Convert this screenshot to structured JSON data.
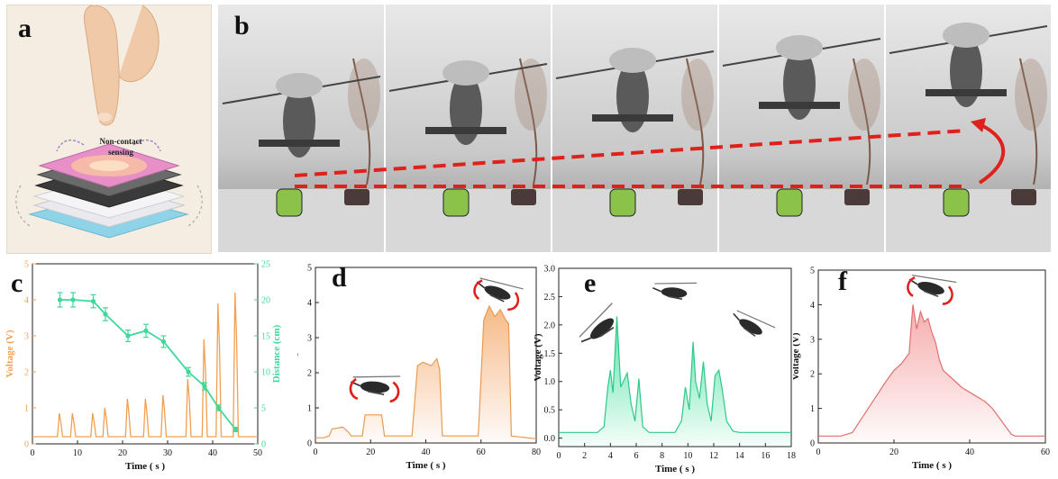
{
  "panels": {
    "a": {
      "letter": "a",
      "label_line1": "Non-contact",
      "label_line2": "sensing"
    },
    "b": {
      "letter": "b"
    },
    "c": {
      "letter": "c"
    },
    "d": {
      "letter": "d"
    },
    "e": {
      "letter": "e"
    },
    "f": {
      "letter": "f"
    }
  },
  "colors": {
    "orange": "#f0a050",
    "green": "#3ed89a",
    "red_fill": "#f5a3a3",
    "red_line": "#e07070",
    "dash_red": "#e0201a"
  },
  "chart_data": [
    {
      "id": "c",
      "type": "line",
      "xlabel": "Time ( s )",
      "ylabel": "Voltage (V)",
      "y2label": "Distance (cm)",
      "xlim": [
        0,
        50
      ],
      "ylim": [
        0,
        5
      ],
      "y2lim": [
        0,
        25
      ],
      "xticks": [
        0,
        10,
        20,
        30,
        40,
        50
      ],
      "yticks": [
        0,
        1,
        2,
        3,
        4,
        5
      ],
      "y2ticks": [
        0,
        5,
        10,
        15,
        20,
        25
      ],
      "series": [
        {
          "type": "peaks",
          "axis": "y",
          "color": "#f0a050",
          "baseline": 0.2,
          "peaks": [
            [
              6.1,
              0.85
            ],
            [
              9.0,
              0.85
            ],
            [
              13.5,
              0.85
            ],
            [
              16.2,
              1.0
            ],
            [
              21.2,
              1.25
            ],
            [
              25.2,
              1.25
            ],
            [
              29.1,
              1.35
            ],
            [
              34.6,
              1.8
            ],
            [
              38.2,
              2.9
            ],
            [
              41.3,
              3.9
            ],
            [
              45.1,
              4.2
            ]
          ]
        },
        {
          "type": "line",
          "axis": "y2",
          "color": "#3ed89a",
          "x": [
            6.1,
            9.0,
            13.5,
            16.2,
            21.2,
            25.2,
            29.1,
            34.6,
            38.2,
            41.3,
            45.1
          ],
          "y": [
            20.0,
            20.0,
            19.8,
            18.0,
            15.0,
            15.7,
            14.2,
            10.0,
            8.0,
            5.0,
            2.0
          ],
          "err": [
            1.0,
            1.0,
            0.9,
            0.9,
            0.8,
            0.9,
            0.8,
            0.6,
            0.5,
            0.4,
            0.3
          ]
        }
      ]
    },
    {
      "id": "d",
      "type": "area",
      "xlabel": "Time ( s )",
      "ylabel": "Voltage (V)",
      "xlim": [
        0,
        80
      ],
      "ylim": [
        0,
        5
      ],
      "xticks": [
        0,
        20,
        40,
        60,
        80
      ],
      "yticks": [
        0,
        1,
        2,
        3,
        4,
        5
      ],
      "x": [
        0,
        3,
        5,
        6,
        10,
        12,
        13,
        17,
        18,
        19,
        22,
        24,
        25,
        34,
        35,
        37,
        39,
        42,
        44,
        45,
        46,
        58,
        59,
        61,
        63,
        65,
        67,
        69,
        70,
        71,
        80
      ],
      "y": [
        0.15,
        0.15,
        0.2,
        0.4,
        0.45,
        0.3,
        0.2,
        0.2,
        0.8,
        0.8,
        0.8,
        0.8,
        0.2,
        0.2,
        0.2,
        2.2,
        2.3,
        2.2,
        2.4,
        2.1,
        0.2,
        0.2,
        0.2,
        3.5,
        3.9,
        3.6,
        3.8,
        3.5,
        3.4,
        0.2,
        0.12
      ]
    },
    {
      "id": "e",
      "type": "area",
      "xlabel": "Time ( s )",
      "ylabel": "Voltage (V)",
      "xlim": [
        0,
        18
      ],
      "ylim": [
        -0.15,
        3.0
      ],
      "xticks": [
        0,
        2,
        4,
        6,
        8,
        10,
        12,
        14,
        16,
        18
      ],
      "yticks": [
        0.0,
        0.5,
        1.0,
        1.5,
        2.0,
        2.5,
        3.0
      ],
      "x": [
        0,
        3.0,
        3.5,
        3.8,
        4.0,
        4.2,
        4.5,
        4.8,
        5.0,
        5.3,
        5.6,
        5.9,
        6.2,
        6.5,
        7.0,
        9.0,
        9.5,
        9.8,
        10.1,
        10.4,
        10.6,
        10.9,
        11.2,
        11.5,
        11.8,
        12.1,
        12.4,
        12.7,
        13.0,
        13.5,
        14.0,
        18.0
      ],
      "y": [
        0.1,
        0.1,
        0.2,
        0.9,
        1.2,
        0.8,
        2.15,
        0.9,
        1.0,
        1.15,
        0.6,
        0.3,
        1.05,
        0.2,
        0.1,
        0.1,
        0.3,
        0.9,
        0.5,
        1.7,
        1.0,
        0.7,
        1.35,
        0.6,
        0.3,
        1.1,
        1.2,
        0.8,
        0.3,
        0.12,
        0.1,
        0.1
      ]
    },
    {
      "id": "f",
      "type": "area",
      "xlabel": "Time ( s )",
      "ylabel": "Voltage (V)",
      "xlim": [
        0,
        60
      ],
      "ylim": [
        0,
        5
      ],
      "xticks": [
        0,
        20,
        40,
        60
      ],
      "yticks": [
        0,
        1,
        2,
        3,
        4,
        5
      ],
      "x": [
        0,
        6,
        9,
        12,
        15,
        18,
        20,
        22,
        24,
        25,
        26,
        27,
        28,
        29,
        30,
        31,
        32,
        33,
        35,
        38,
        41,
        44,
        46,
        48,
        50,
        51,
        52,
        60
      ],
      "y": [
        0.2,
        0.2,
        0.3,
        0.8,
        1.3,
        1.8,
        2.1,
        2.3,
        2.6,
        4.0,
        3.3,
        3.8,
        3.5,
        3.6,
        3.2,
        2.9,
        2.4,
        2.1,
        1.9,
        1.6,
        1.4,
        1.2,
        1.0,
        0.7,
        0.4,
        0.25,
        0.2,
        0.2
      ]
    }
  ]
}
